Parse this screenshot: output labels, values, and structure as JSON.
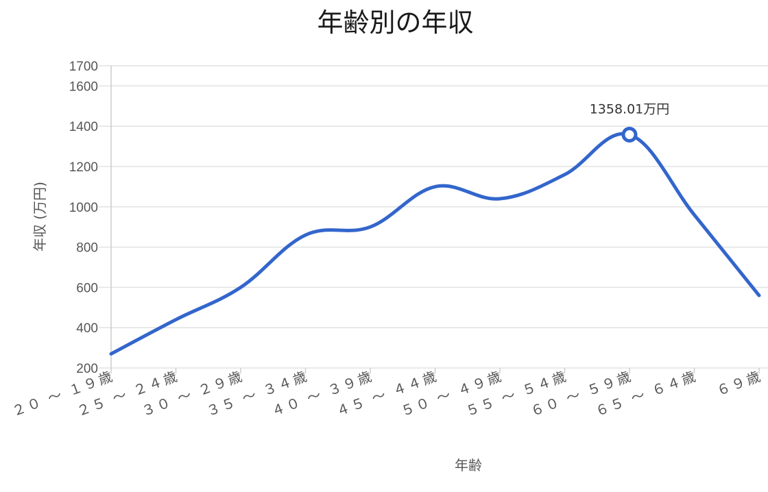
{
  "chart_data": {
    "type": "line",
    "title": "年齢別の年収",
    "xlabel": "年齢",
    "ylabel": "年収 (万円)",
    "ylim": [
      200,
      1700
    ],
    "yticks": [
      200,
      400,
      600,
      800,
      1000,
      1200,
      1400,
      1600,
      1700
    ],
    "categories": [
      "２０ 〜 １９歳",
      "２５ 〜 ２４歳",
      "３０ 〜 ２９歳",
      "３５ 〜 ３４歳",
      "４０ 〜 ３９歳",
      "４５ 〜 ４４歳",
      "５０ 〜 ４９歳",
      "５５ 〜 ５４歳",
      "６０ 〜 ５９歳",
      "６５ 〜 ６４歳",
      "６９歳"
    ],
    "series": [
      {
        "values": [
          270,
          440,
          600,
          860,
          900,
          1100,
          1040,
          1160,
          1358.01,
          960,
          560
        ]
      }
    ],
    "highlight": {
      "category_index": 8,
      "label": "1358.01万円"
    },
    "grid": true,
    "line_color": "#3366cc"
  }
}
